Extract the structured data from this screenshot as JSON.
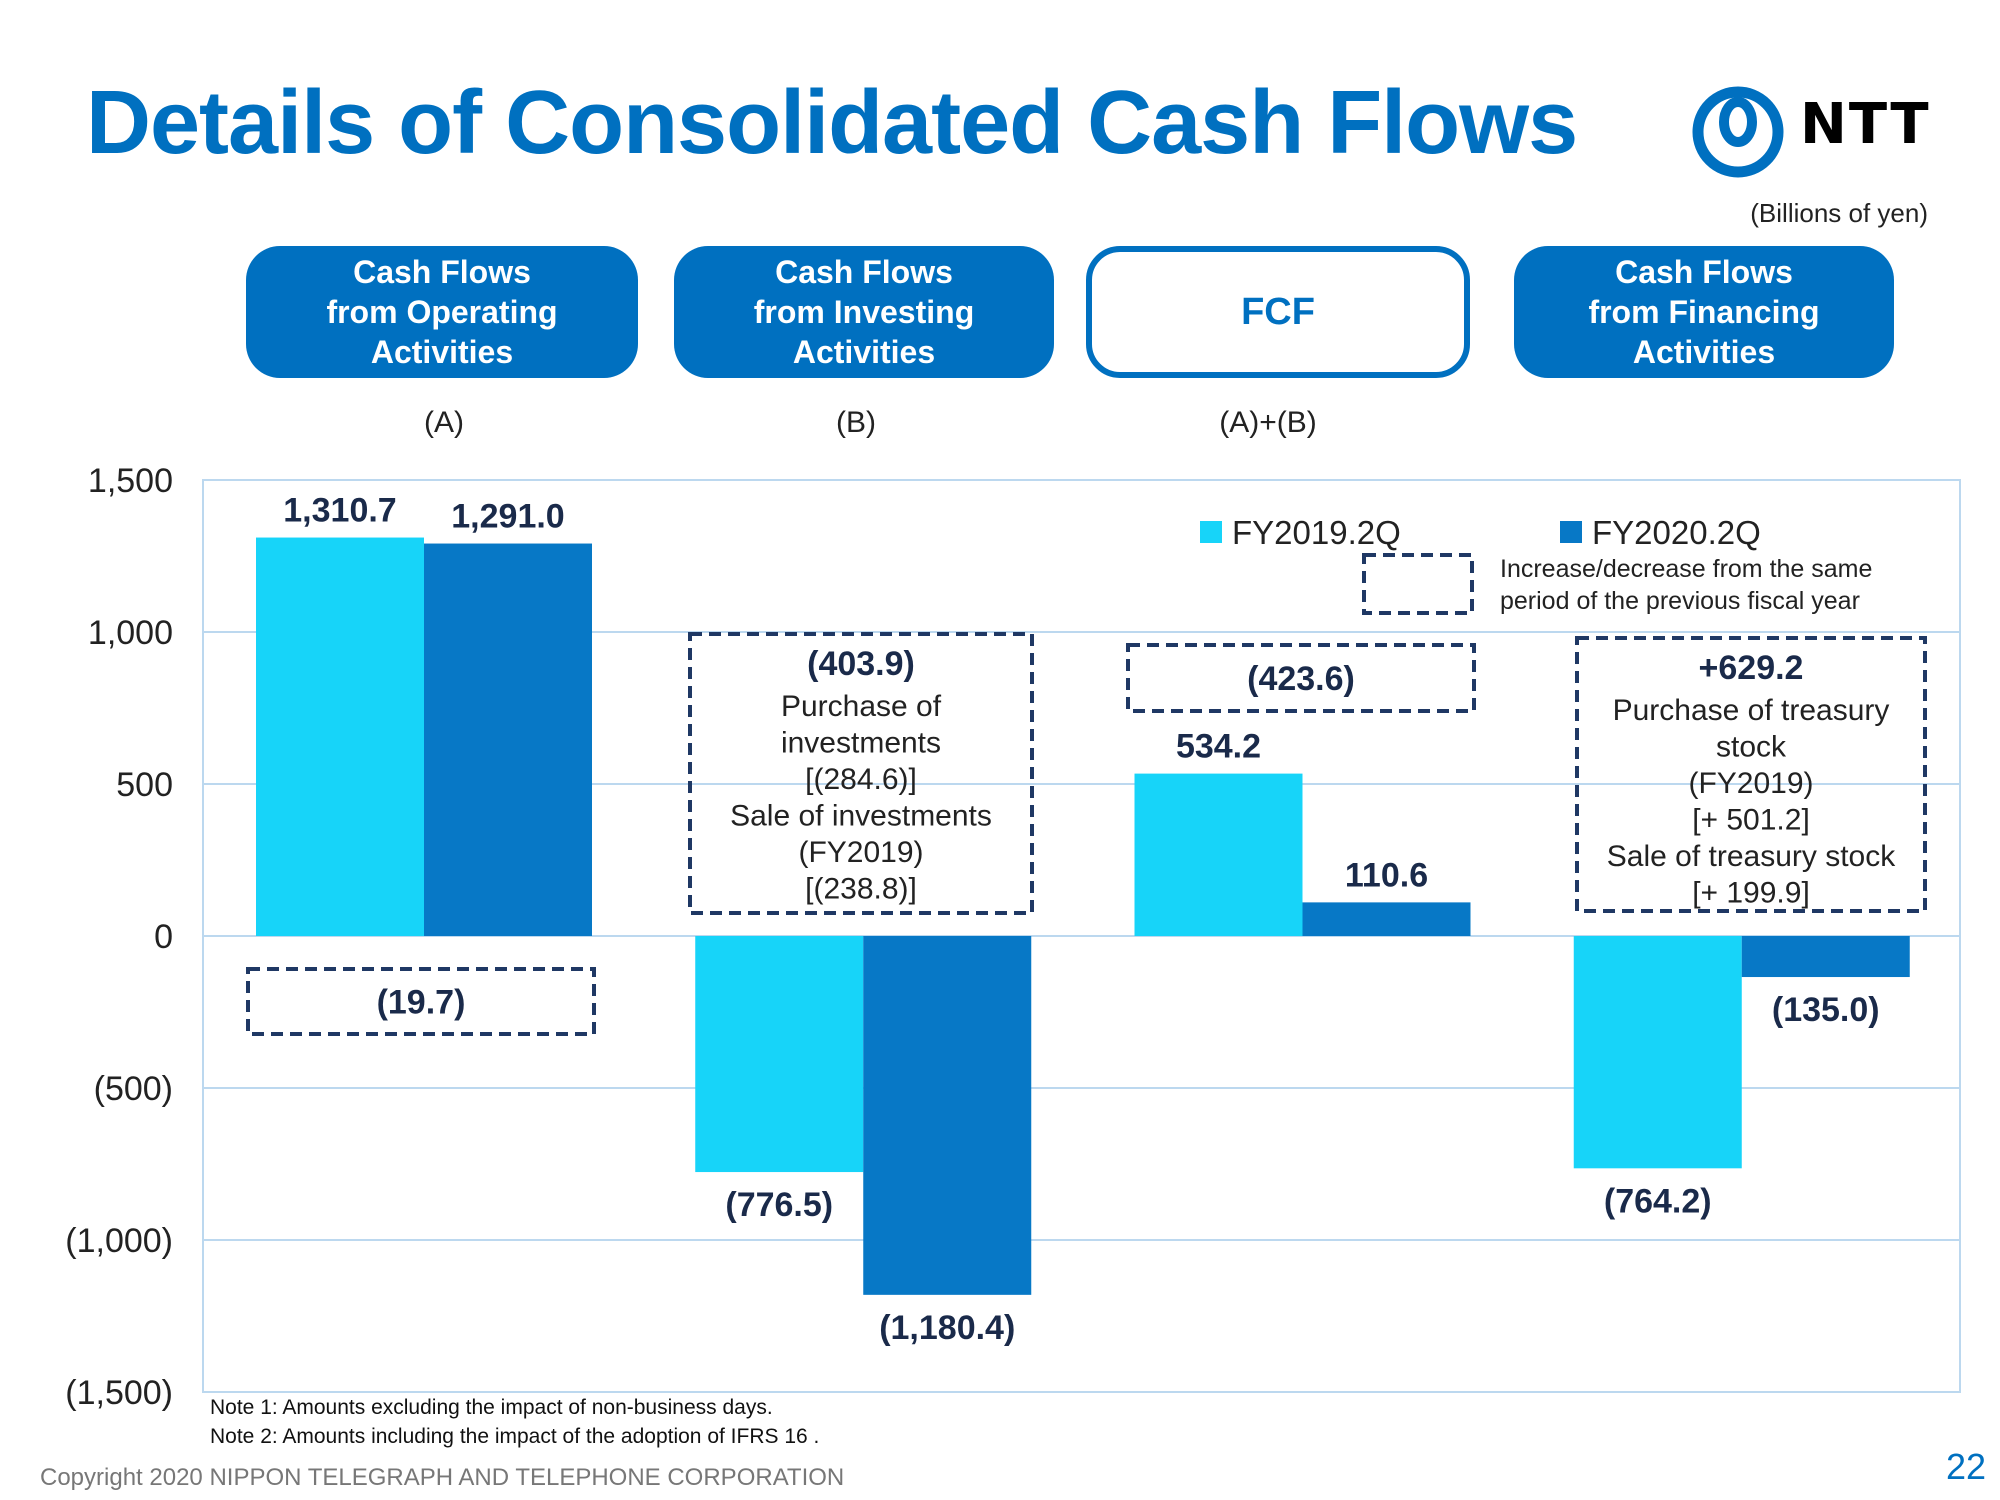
{
  "slide": {
    "title": "Details of Consolidated Cash Flows",
    "logo_text": "NTT",
    "units": "(Billions of yen)",
    "page_number": "22",
    "copyright": "Copyright 2020 NIPPON TELEGRAPH AND TELEPHONE CORPORATION",
    "notes": [
      "Note 1: Amounts  excluding  the impact of non-business  days.",
      "Note 2: Amounts  including  the impact of the adoption of IFRS 16 ."
    ]
  },
  "headers": [
    {
      "label": "Cash Flows\nfrom Operating\nActivities",
      "sub": "(A)",
      "style": "filled"
    },
    {
      "label": "Cash Flows\nfrom Investing\nActivities",
      "sub": "(B)",
      "style": "filled"
    },
    {
      "label": "FCF",
      "sub": "(A)+(B)",
      "style": "outline"
    },
    {
      "label": "Cash Flows\nfrom Financing\nActivities",
      "sub": "",
      "style": "filled"
    }
  ],
  "colors": {
    "fy2019": "#17d4f9",
    "fy2020": "#0778c6",
    "grid": "#bcd8ef",
    "dashed": "#1f3864",
    "title": "#0070c0",
    "label": "#1a2a4a"
  },
  "chart_data": {
    "type": "bar",
    "categories": [
      "Cash Flows from Operating Activities",
      "Cash Flows from Investing Activities",
      "FCF",
      "Cash Flows from Financing Activities"
    ],
    "series": [
      {
        "name": "FY2019.2Q",
        "values": [
          1310.7,
          -776.5,
          534.2,
          -764.2
        ],
        "labels": [
          "1,310.7",
          "(776.5)",
          "534.2",
          "(764.2)"
        ]
      },
      {
        "name": "FY2020.2Q",
        "values": [
          1291.0,
          -1180.4,
          110.6,
          -135.0
        ],
        "labels": [
          "1,291.0",
          "(1,180.4)",
          "110.6",
          "(135.0)"
        ]
      }
    ],
    "ylim": [
      -1500,
      1500
    ],
    "yticks": [
      1500,
      1000,
      500,
      0,
      -500,
      -1000,
      -1500
    ],
    "ytick_labels": [
      "1,500",
      "1,000",
      "500",
      "0",
      "(500)",
      "(1,000)",
      "(1,500)"
    ],
    "legend_position": "top-right",
    "legend_note": "Increase/decrease from the same period of the previous fiscal year",
    "changes": [
      {
        "category": "Cash Flows from Operating Activities",
        "value": -19.7,
        "label": "(19.7)",
        "details": []
      },
      {
        "category": "Cash Flows from Investing Activities",
        "value": -403.9,
        "label": "(403.9)",
        "details": [
          "Purchase of",
          "investments",
          "[(284.6)]",
          "Sale of investments",
          "(FY2019)",
          "[(238.8)]"
        ]
      },
      {
        "category": "FCF",
        "value": -423.6,
        "label": "(423.6)",
        "details": []
      },
      {
        "category": "Cash Flows from Financing Activities",
        "value": 629.2,
        "label": "+629.2",
        "details": [
          "Purchase of treasury",
          "stock",
          "(FY2019)",
          "[+ 501.2]",
          "Sale of treasury stock",
          "[+ 199.9]"
        ]
      }
    ]
  }
}
